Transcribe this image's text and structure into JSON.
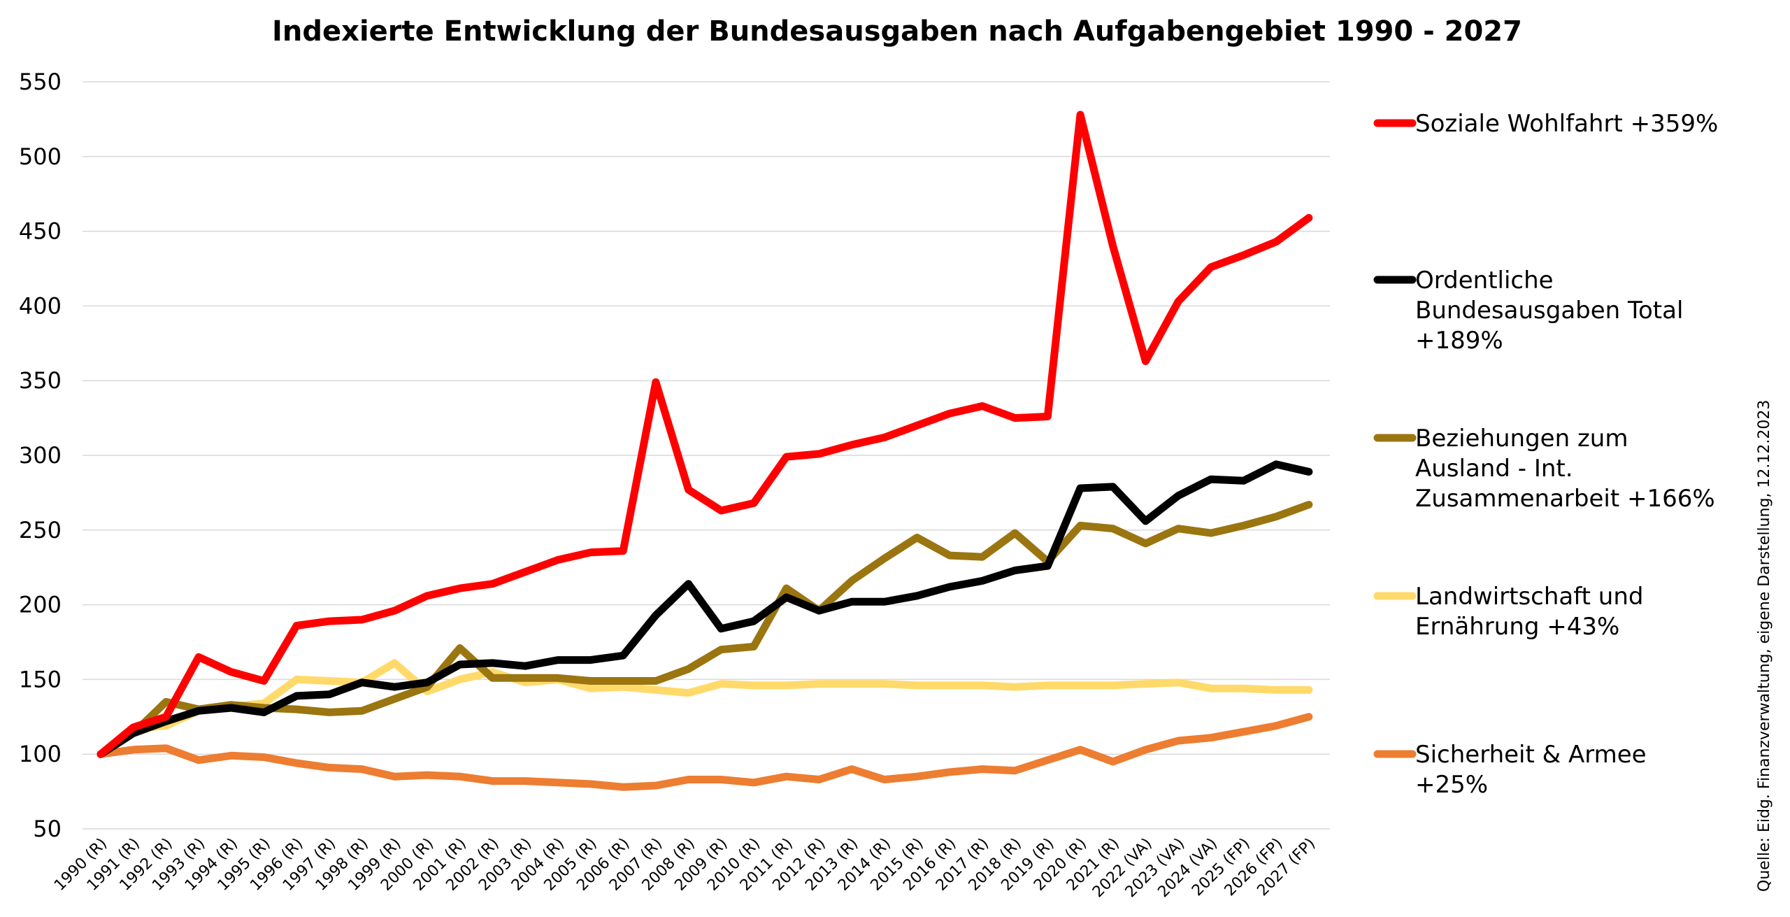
{
  "chart_data": {
    "type": "line",
    "title": "Indexierte Entwicklung der Bundesausgaben nach Aufgabengebiet 1990 - 2027",
    "source": "Quelle: Eidg. Finanzverwaltung, eigene Darstellung, 12.12.2023",
    "ylim": [
      50,
      550
    ],
    "yticks": [
      50,
      100,
      150,
      200,
      250,
      300,
      350,
      400,
      450,
      500,
      550
    ],
    "grid": true,
    "legend_position": "right",
    "x": [
      "1990 (R)",
      "1991 (R)",
      "1992 (R)",
      "1993 (R)",
      "1994 (R)",
      "1995 (R)",
      "1996 (R)",
      "1997 (R)",
      "1998 (R)",
      "1999 (R)",
      "2000 (R)",
      "2001 (R)",
      "2002 (R)",
      "2003 (R)",
      "2004 (R)",
      "2005 (R)",
      "2006 (R)",
      "2007 (R)",
      "2008 (R)",
      "2009 (R)",
      "2010 (R)",
      "2011 (R)",
      "2012 (R)",
      "2013 (R)",
      "2014 (R)",
      "2015 (R)",
      "2016 (R)",
      "2017 (R)",
      "2018 (R)",
      "2019 (R)",
      "2020 (R)",
      "2021 (R)",
      "2022 (VA)",
      "2023 (VA)",
      "2024 (VA)",
      "2025 (FP)",
      "2026 (FP)",
      "2027 (FP)"
    ],
    "series": [
      {
        "name": "Soziale Wohlfahrt +359%",
        "label_lines": [
          "Soziale Wohlfahrt +359%"
        ],
        "color": "#ff0000",
        "values": [
          100,
          118,
          125,
          165,
          155,
          149,
          186,
          189,
          190,
          196,
          206,
          211,
          214,
          222,
          230,
          235,
          236,
          349,
          277,
          263,
          268,
          299,
          301,
          307,
          312,
          320,
          328,
          333,
          325,
          326,
          528,
          440,
          363,
          403,
          426,
          434,
          443,
          459
        ]
      },
      {
        "name": "Ordentliche Bundesausgaben Total +189%",
        "label_lines": [
          "Ordentliche",
          "Bundesausgaben Total",
          "+189%"
        ],
        "color": "#000000",
        "values": [
          100,
          114,
          122,
          129,
          131,
          128,
          139,
          140,
          148,
          145,
          148,
          160,
          161,
          159,
          163,
          163,
          166,
          193,
          214,
          184,
          189,
          205,
          196,
          202,
          202,
          206,
          212,
          216,
          223,
          226,
          278,
          279,
          256,
          273,
          284,
          283,
          294,
          289
        ]
      },
      {
        "name": "Beziehungen zum Ausland - Int. Zusammenarbeit +166%",
        "label_lines": [
          "Beziehungen zum",
          "Ausland - Int.",
          "Zusammenarbeit +166%"
        ],
        "color": "#9a7510",
        "values": [
          100,
          114,
          135,
          130,
          133,
          131,
          130,
          128,
          129,
          137,
          145,
          171,
          151,
          151,
          151,
          149,
          149,
          149,
          157,
          170,
          172,
          211,
          196,
          216,
          231,
          245,
          233,
          232,
          248,
          229,
          253,
          251,
          241,
          251,
          248,
          253,
          259,
          267
        ]
      },
      {
        "name": "Landwirtschaft und Ernährung +43%",
        "label_lines": [
          "Landwirtschaft und",
          "Ernährung +43%"
        ],
        "color": "#ffda6b",
        "values": [
          100,
          117,
          119,
          129,
          132,
          134,
          150,
          149,
          148,
          161,
          142,
          150,
          155,
          148,
          150,
          144,
          145,
          143,
          141,
          147,
          146,
          146,
          147,
          147,
          147,
          146,
          146,
          146,
          145,
          146,
          146,
          146,
          147,
          148,
          144,
          144,
          143,
          143
        ]
      },
      {
        "name": "Sicherheit & Armee +25%",
        "label_lines": [
          "Sicherheit & Armee",
          "+25%"
        ],
        "color": "#ed7d31",
        "values": [
          100,
          103,
          104,
          96,
          99,
          98,
          94,
          91,
          90,
          85,
          86,
          85,
          82,
          82,
          81,
          80,
          78,
          79,
          83,
          83,
          81,
          85,
          83,
          90,
          83,
          85,
          88,
          90,
          89,
          96,
          103,
          95,
          103,
          109,
          111,
          115,
          119,
          125
        ]
      }
    ]
  }
}
